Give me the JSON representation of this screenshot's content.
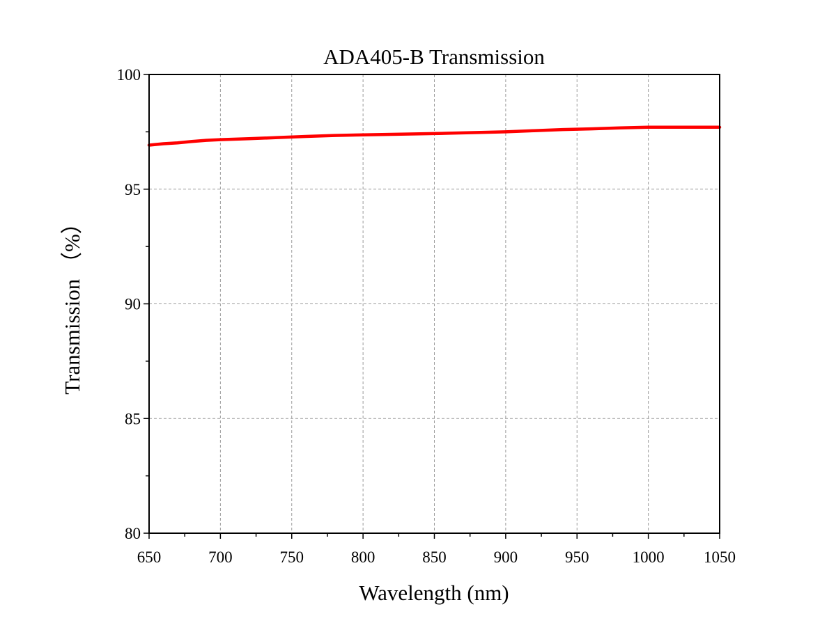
{
  "chart_data": {
    "type": "line",
    "title": "ADA405-B Transmission",
    "xlabel": "Wavelength (nm)",
    "ylabel": "Transmission （%）",
    "xlim": [
      650,
      1050
    ],
    "ylim": [
      80,
      100
    ],
    "x_ticks": [
      650,
      700,
      750,
      800,
      850,
      900,
      950,
      1000,
      1050
    ],
    "y_ticks": [
      80,
      85,
      90,
      95,
      100
    ],
    "grid": true,
    "series": [
      {
        "color": "#ff0000",
        "x": [
          650,
          660,
          670,
          680,
          690,
          700,
          720,
          740,
          760,
          780,
          800,
          820,
          840,
          860,
          880,
          900,
          920,
          940,
          960,
          980,
          1000,
          1020,
          1040,
          1050
        ],
        "y": [
          96.92,
          96.98,
          97.02,
          97.08,
          97.13,
          97.16,
          97.2,
          97.25,
          97.3,
          97.34,
          97.37,
          97.39,
          97.41,
          97.44,
          97.47,
          97.5,
          97.55,
          97.6,
          97.63,
          97.67,
          97.7,
          97.7,
          97.7,
          97.7
        ]
      }
    ]
  }
}
